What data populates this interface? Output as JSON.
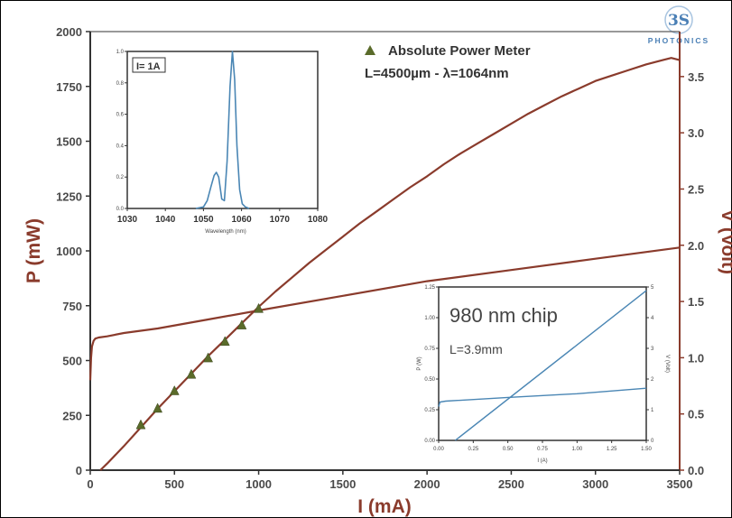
{
  "logo": {
    "mark": "3S",
    "name": "PHOTONICS"
  },
  "chart_data": [
    {
      "type": "line",
      "title": "",
      "xlabel": "I (mA)",
      "ylabel_left": "P (mW)",
      "ylabel_right": "V (Volt)",
      "xlim": [
        0,
        3500
      ],
      "ylim_left": [
        0,
        2000
      ],
      "ylim_right": [
        0,
        3.9
      ],
      "x_ticks": [
        "0",
        "500",
        "1000",
        "1500",
        "2000",
        "2500",
        "3000",
        "3500"
      ],
      "y_left_ticks": [
        "0",
        "250",
        "500",
        "750",
        "1000",
        "1250",
        "1500",
        "1750",
        "2000"
      ],
      "y_right_ticks": [
        "0.0",
        "0.5",
        "1.0",
        "1.5",
        "2.0",
        "2.5",
        "3.0",
        "3.5"
      ],
      "annotations": [
        "Absolute Power Meter",
        "L=4500µm - λ=1064nm"
      ],
      "series": [
        {
          "axis": "left",
          "color": "#8a3b2c",
          "x": [
            60,
            100,
            200,
            300,
            400,
            500,
            600,
            700,
            800,
            900,
            1000,
            1100,
            1200,
            1300,
            1400,
            1500,
            1600,
            1700,
            1800,
            1900,
            2000,
            2100,
            2200,
            2300,
            2400,
            2500,
            2600,
            2700,
            2800,
            2900,
            3000,
            3100,
            3200,
            3300,
            3400,
            3450,
            3500
          ],
          "y": [
            0,
            30,
            110,
            195,
            280,
            360,
            440,
            520,
            595,
            670,
            745,
            815,
            880,
            945,
            1005,
            1065,
            1125,
            1180,
            1235,
            1290,
            1340,
            1395,
            1445,
            1490,
            1535,
            1580,
            1625,
            1665,
            1705,
            1740,
            1775,
            1800,
            1825,
            1850,
            1870,
            1880,
            1870
          ]
        },
        {
          "axis": "right",
          "color": "#8a3b2c",
          "x": [
            0,
            5,
            10,
            20,
            30,
            50,
            100,
            200,
            400,
            700,
            1000,
            1500,
            2000,
            2500,
            3000,
            3500
          ],
          "y": [
            0.8,
            1.0,
            1.1,
            1.15,
            1.17,
            1.18,
            1.19,
            1.22,
            1.26,
            1.34,
            1.42,
            1.55,
            1.68,
            1.78,
            1.88,
            1.98
          ]
        },
        {
          "axis": "left",
          "type": "scatter",
          "marker": "triangle",
          "color": "#5a6b2a",
          "x": [
            300,
            400,
            500,
            600,
            700,
            800,
            900,
            1000
          ],
          "y": [
            205,
            280,
            360,
            435,
            510,
            585,
            660,
            735
          ]
        }
      ]
    },
    {
      "type": "line",
      "title": "",
      "legend": [
        "I= 1A"
      ],
      "xlabel": "Wavelength (nm)",
      "ylabel": "",
      "xlim": [
        1030,
        1080
      ],
      "ylim": [
        0,
        1.0
      ],
      "x_ticks": [
        "1030",
        "1040",
        "1050",
        "1060",
        "1070",
        "1080"
      ],
      "y_ticks": [
        "0.0",
        "0.2",
        "0.4",
        "0.6",
        "0.8",
        "1.0"
      ],
      "series": [
        {
          "color": "#4a86b4",
          "x": [
            1048,
            1050,
            1051,
            1052,
            1052.8,
            1053.4,
            1054,
            1054.8,
            1055.5,
            1056.2,
            1057,
            1057.6,
            1058.2,
            1058.8,
            1059.5,
            1060.2,
            1061,
            1062
          ],
          "y": [
            0,
            0.01,
            0.05,
            0.14,
            0.21,
            0.23,
            0.2,
            0.06,
            0.05,
            0.3,
            0.78,
            1.0,
            0.82,
            0.4,
            0.12,
            0.03,
            0.01,
            0
          ]
        }
      ]
    },
    {
      "type": "line",
      "title": "",
      "annotations": [
        "980 nm chip",
        "L=3.9mm"
      ],
      "xlabel": "I (A)",
      "ylabel_left": "P (W)",
      "ylabel_right": "V (Volt)",
      "xlim": [
        0,
        1.5
      ],
      "ylim_left": [
        0,
        1.25
      ],
      "ylim_right": [
        0,
        5
      ],
      "x_ticks": [
        "0.00",
        "0.25",
        "0.50",
        "0.75",
        "1.00",
        "1.25",
        "1.50"
      ],
      "y_left_ticks": [
        "0.00",
        "0.25",
        "0.50",
        "0.75",
        "1.00",
        "1.25"
      ],
      "y_right_ticks": [
        "0",
        "1",
        "2",
        "3",
        "4",
        "5"
      ],
      "series": [
        {
          "axis": "left",
          "color": "#4a86b4",
          "x": [
            0.12,
            1.5
          ],
          "y": [
            0,
            1.22
          ]
        },
        {
          "axis": "right",
          "color": "#4a86b4",
          "x": [
            0,
            0.01,
            0.05,
            0.5,
            1.0,
            1.5
          ],
          "y": [
            1.1,
            1.25,
            1.28,
            1.4,
            1.52,
            1.7
          ]
        }
      ]
    }
  ]
}
